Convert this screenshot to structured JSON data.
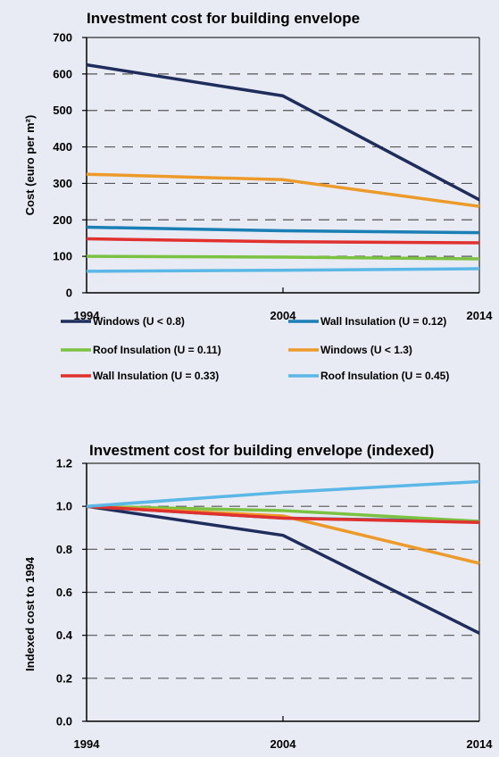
{
  "chart_data": [
    {
      "type": "line",
      "title": "Investment cost for building envelope",
      "ylabel": "Cost (euro per m²)",
      "xlabel": "",
      "x": [
        "1994",
        "2004",
        "2014"
      ],
      "ylim": [
        0,
        700
      ],
      "yticks": [
        "0",
        "100",
        "200",
        "300",
        "400",
        "500",
        "600",
        "700"
      ],
      "grid": "horizontal-dashed",
      "series": [
        {
          "name": "Windows (U < 0.8)",
          "color": "#1f2d5c",
          "values": [
            625,
            540,
            255
          ]
        },
        {
          "name": "Wall Insulation (U = 0.12)",
          "color": "#1a7fb5",
          "values": [
            180,
            170,
            165
          ]
        },
        {
          "name": "Roof Insulation (U = 0.11)",
          "color": "#7cc242",
          "values": [
            100,
            98,
            93
          ]
        },
        {
          "name": "Windows (U < 1.3)",
          "color": "#ec9a29",
          "values": [
            325,
            310,
            237
          ]
        },
        {
          "name": "Wall Insulation (U = 0.33)",
          "color": "#e0312f",
          "values": [
            148,
            140,
            137
          ]
        },
        {
          "name": "Roof Insulation (U = 0.45)",
          "color": "#5bb8e6",
          "values": [
            59,
            62,
            66
          ]
        }
      ]
    },
    {
      "type": "line",
      "title": "Investment cost for building envelope (indexed)",
      "ylabel": "Indexed cost to 1994",
      "xlabel": "",
      "x": [
        "1994",
        "2004",
        "2014"
      ],
      "ylim": [
        0,
        1.2
      ],
      "yticks": [
        "0.0",
        "0.2",
        "0.4",
        "0.6",
        "0.8",
        "1.0",
        "1.2"
      ],
      "grid": "horizontal-dashed",
      "series": [
        {
          "name": "Windows (U < 0.8)",
          "color": "#1f2d5c",
          "values": [
            1.0,
            0.865,
            0.41
          ]
        },
        {
          "name": "Wall Insulation (U = 0.12)",
          "color": "#1a7fb5",
          "values": [
            1.0,
            0.945,
            0.93
          ]
        },
        {
          "name": "Roof Insulation (U = 0.11)",
          "color": "#7cc242",
          "values": [
            1.0,
            0.98,
            0.93
          ]
        },
        {
          "name": "Windows (U < 1.3)",
          "color": "#ec9a29",
          "values": [
            1.0,
            0.955,
            0.735
          ]
        },
        {
          "name": "Wall Insulation (U = 0.33)",
          "color": "#e0312f",
          "values": [
            1.0,
            0.945,
            0.925
          ]
        },
        {
          "name": "Roof Insulation (U = 0.45)",
          "color": "#5bb8e6",
          "values": [
            1.0,
            1.065,
            1.115
          ]
        }
      ]
    }
  ],
  "legend": {
    "items": [
      {
        "label": "Windows (U < 0.8)",
        "color": "#1f2d5c"
      },
      {
        "label": "Wall Insulation (U = 0.12)",
        "color": "#1a7fb5"
      },
      {
        "label": "Roof Insulation (U = 0.11)",
        "color": "#7cc242"
      },
      {
        "label": "Windows (U < 1.3)",
        "color": "#ec9a29"
      },
      {
        "label": "Wall Insulation (U = 0.33)",
        "color": "#e0312f"
      },
      {
        "label": "Roof Insulation (U = 0.45)",
        "color": "#5bb8e6"
      }
    ]
  }
}
